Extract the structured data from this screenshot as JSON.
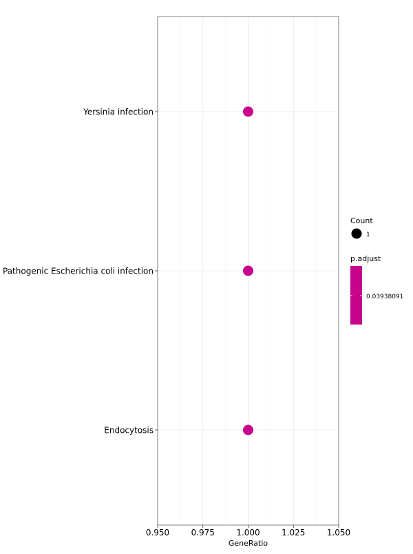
{
  "chart_data": {
    "type": "scatter",
    "title": "",
    "xlabel": "GeneRatio",
    "ylabel": "",
    "xlim": [
      0.95,
      1.05
    ],
    "x_ticks": [
      "0.950",
      "0.975",
      "1.000",
      "1.025",
      "1.050"
    ],
    "x_tick_values": [
      0.95,
      0.975,
      1.0,
      1.025,
      1.05
    ],
    "categories": [
      "Endocytosis",
      "Pathogenic Escherichia coli infection",
      "Yersinia infection"
    ],
    "series": [
      {
        "points": [
          {
            "term": "Yersinia infection",
            "gene_ratio": 1.0,
            "count": 1,
            "p_adjust": 0.03938091
          },
          {
            "term": "Pathogenic Escherichia coli infection",
            "gene_ratio": 1.0,
            "count": 1,
            "p_adjust": 0.03938091
          },
          {
            "term": "Endocytosis",
            "gene_ratio": 1.0,
            "count": 1,
            "p_adjust": 0.03938091
          }
        ]
      }
    ],
    "grid": true,
    "point_color": "#c7048c",
    "legend": {
      "placement": "right",
      "size_title": "Count",
      "size_entries": [
        "1"
      ],
      "color_title": "p.adjust",
      "color_entries": [
        "0.03938091"
      ],
      "color_bar_color": "#c7048c"
    }
  }
}
